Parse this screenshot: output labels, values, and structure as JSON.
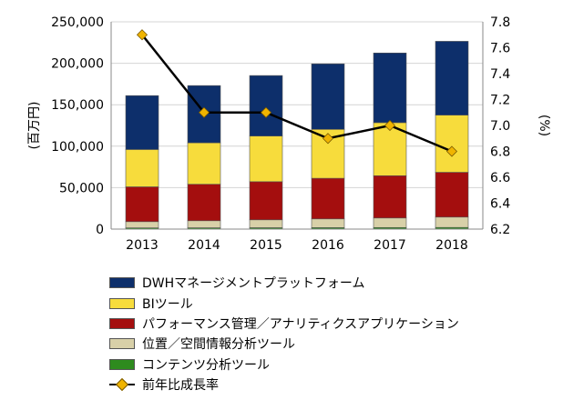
{
  "chart_data": {
    "type": "bar",
    "stacked": true,
    "categories": [
      "2013",
      "2014",
      "2015",
      "2016",
      "2017",
      "2018"
    ],
    "ylabel": "(百万円)",
    "y2label": "(%)",
    "ylim": [
      0,
      250000
    ],
    "yticks": [
      "0",
      "50,000",
      "100,000",
      "150,000",
      "200,000",
      "250,000"
    ],
    "ytick_values": [
      0,
      50000,
      100000,
      150000,
      200000,
      250000
    ],
    "y2lim": [
      6.2,
      7.8
    ],
    "y2ticks": [
      "6.2",
      "6.4",
      "6.6",
      "6.8",
      "7.0",
      "7.2",
      "7.4",
      "7.6",
      "7.8"
    ],
    "y2tick_values": [
      6.2,
      6.4,
      6.6,
      6.8,
      7.0,
      7.2,
      7.4,
      7.6,
      7.8
    ],
    "series": [
      {
        "name": "DWHマネージメントプラットフォーム",
        "color": "#0d2f6b",
        "values": [
          65000,
          69000,
          73000,
          79000,
          84000,
          89000
        ]
      },
      {
        "name": "BIツール",
        "color": "#f7dc3c",
        "values": [
          45000,
          50000,
          55000,
          59000,
          64000,
          69000
        ]
      },
      {
        "name": "パフォーマンス管理／アナリティクスアプリケーション",
        "color": "#a40e0e",
        "values": [
          42000,
          44000,
          46000,
          49000,
          51000,
          54000
        ]
      },
      {
        "name": "位置／空間情報分析ツール",
        "color": "#d8d0a8",
        "values": [
          7500,
          8500,
          9500,
          10500,
          11500,
          12500
        ]
      },
      {
        "name": "コンテンツ分析ツール",
        "color": "#2e8b1e",
        "values": [
          1500,
          1600,
          1700,
          1800,
          1900,
          2000
        ]
      }
    ],
    "line_series": {
      "name": "前年比成長率",
      "axis": "right",
      "color": "#000000",
      "marker_color": "#f0b400",
      "values": [
        7.7,
        7.1,
        7.1,
        6.9,
        7.0,
        6.8
      ]
    }
  }
}
